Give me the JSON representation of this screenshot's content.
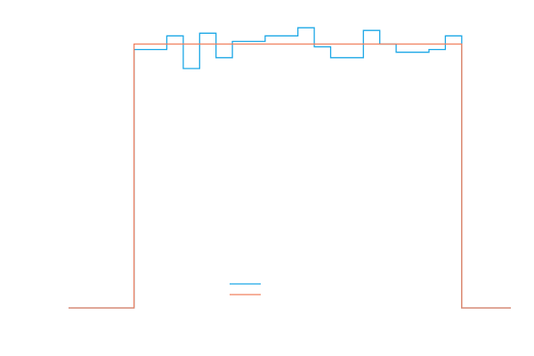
{
  "chart_data": {
    "type": "line",
    "title": "",
    "xlabel": "",
    "ylabel": "",
    "grid": false,
    "legend": {
      "placement": "bottom-center",
      "entries": [
        "",
        ""
      ]
    },
    "xlim": [
      -4,
      23
    ],
    "ylim": [
      0,
      1.06
    ],
    "series": [
      {
        "color": "#1ba7e6",
        "style": "step",
        "edges": [
          -4,
          0,
          1,
          2,
          3,
          4,
          5,
          6,
          7,
          8,
          9,
          10,
          11,
          12,
          13,
          14,
          15,
          16,
          17,
          18,
          19,
          20,
          23
        ],
        "values": [
          0,
          0.95,
          0.95,
          1.0,
          0.88,
          1.01,
          0.92,
          0.98,
          0.98,
          1.0,
          1.0,
          1.03,
          0.96,
          0.92,
          0.92,
          1.02,
          0.97,
          0.94,
          0.94,
          0.95,
          1.0,
          0
        ]
      },
      {
        "color": "#f0805e",
        "style": "step",
        "edges": [
          -4,
          0,
          20,
          23
        ],
        "values": [
          0,
          0.97,
          0
        ]
      }
    ]
  }
}
